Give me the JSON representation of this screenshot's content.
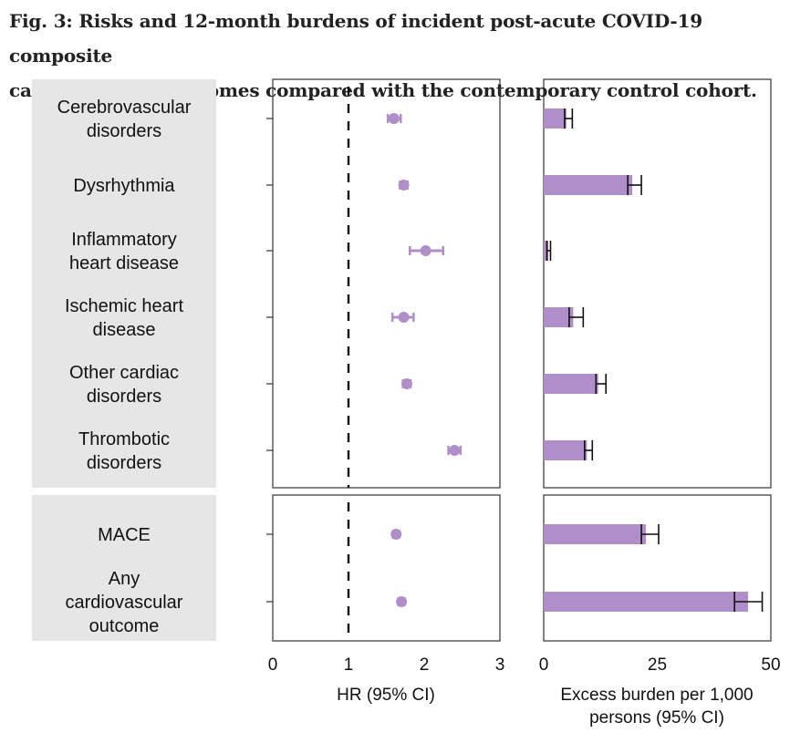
{
  "figure": {
    "title_line1": "Fig. 3: Risks and 12-month burdens of incident post-acute COVID-19 composite",
    "title_line2": "cardiovascular outcomes compared with the contemporary control cohort."
  },
  "colors": {
    "marker": "#b08ec9",
    "bar": "#b08ec9",
    "error": "#111111",
    "panel_bg": "#e6e6e6"
  },
  "chart_data": [
    {
      "type": "scatter",
      "name": "hazard-ratio-forest-plot",
      "xlabel": "HR (95% CI)",
      "xlim": [
        0,
        3
      ],
      "xticks": [
        "0",
        "1",
        "2",
        "3"
      ],
      "reference_line": 1,
      "groups": [
        {
          "categories": [
            [
              "Cerebrovascular",
              "disorders"
            ],
            [
              "Dysrhythmia"
            ],
            [
              "Inflammatory",
              "heart disease"
            ],
            [
              "Ischemic heart",
              "disease"
            ],
            [
              "Other cardiac",
              "disorders"
            ],
            [
              "Thrombotic",
              "disorders"
            ]
          ],
          "hr": [
            1.6,
            1.73,
            2.02,
            1.73,
            1.77,
            2.4
          ],
          "lower": [
            1.52,
            1.68,
            1.81,
            1.58,
            1.72,
            2.32
          ],
          "upper": [
            1.69,
            1.78,
            2.25,
            1.86,
            1.82,
            2.48
          ]
        },
        {
          "categories": [
            [
              "MACE"
            ],
            [
              "Any",
              "cardiovascular",
              "outcome"
            ]
          ],
          "hr": [
            1.63,
            1.7
          ],
          "lower": [
            1.59,
            1.66
          ],
          "upper": [
            1.67,
            1.74
          ]
        }
      ]
    },
    {
      "type": "bar",
      "name": "excess-burden",
      "xlabel_line1": "Excess burden per 1,000",
      "xlabel_line2": "persons (95% CI)",
      "xlim": [
        0,
        50
      ],
      "xticks": [
        "0",
        "25",
        "50"
      ],
      "groups": [
        {
          "values": [
            5.0,
            19.5,
            1.0,
            6.5,
            12.0,
            9.5
          ],
          "lower": [
            4.6,
            18.5,
            0.7,
            5.6,
            11.5,
            9.0
          ],
          "upper": [
            6.3,
            21.5,
            1.5,
            8.7,
            13.7,
            10.7
          ]
        },
        {
          "values": [
            22.5,
            45.0
          ],
          "lower": [
            21.5,
            42.0
          ],
          "upper": [
            25.3,
            48.1
          ]
        }
      ]
    }
  ]
}
